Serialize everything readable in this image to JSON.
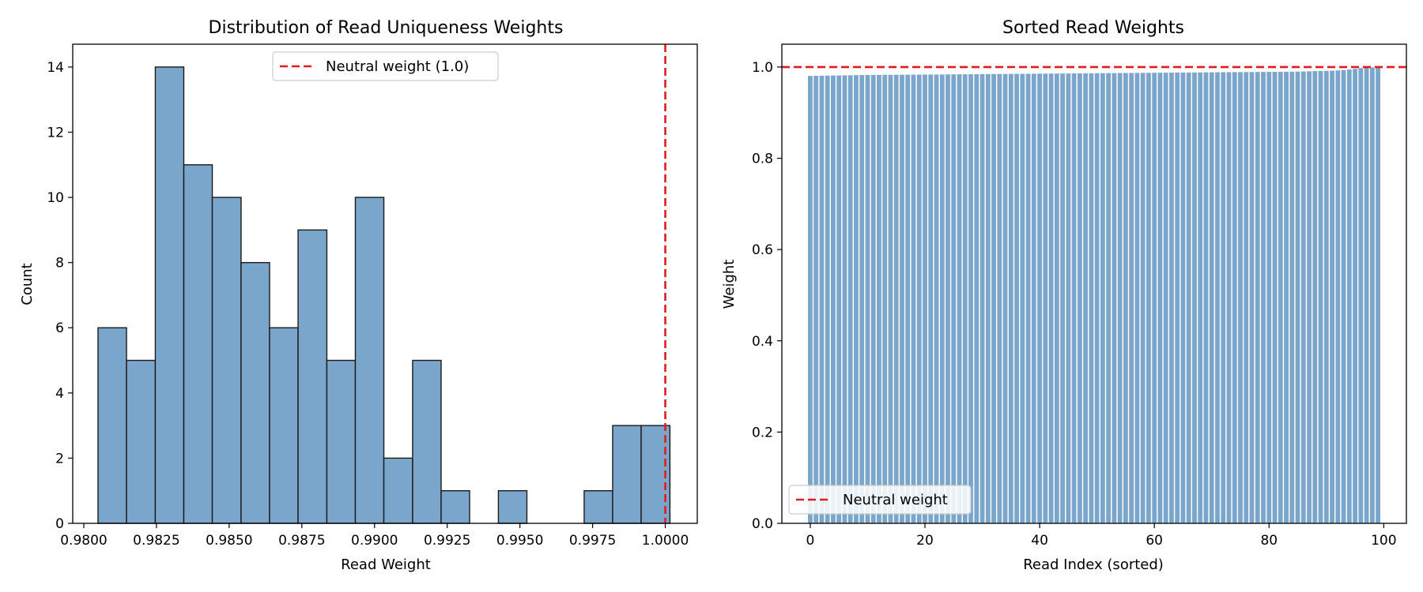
{
  "chart_data": [
    {
      "type": "bar",
      "title": "Distribution of Read Uniqueness Weights",
      "xlabel": "Read Weight",
      "ylabel": "Count",
      "xlim": [
        0.97962,
        1.0011
      ],
      "ylim": [
        0,
        14.7
      ],
      "xticks": [
        "0.9800",
        "0.9825",
        "0.9850",
        "0.9875",
        "0.9900",
        "0.9925",
        "0.9950",
        "0.9975",
        "1.0000"
      ],
      "xtick_values": [
        0.98,
        0.9825,
        0.985,
        0.9875,
        0.99,
        0.9925,
        0.995,
        0.9975,
        1.0
      ],
      "yticks": [
        "0",
        "2",
        "4",
        "6",
        "8",
        "10",
        "12",
        "14"
      ],
      "ytick_values": [
        0,
        2,
        4,
        6,
        8,
        10,
        12,
        14
      ],
      "bin_edges": [
        0.98049,
        0.98147,
        0.98246,
        0.98344,
        0.98442,
        0.98541,
        0.98639,
        0.98737,
        0.98836,
        0.98934,
        0.99032,
        0.99131,
        0.99229,
        0.99327,
        0.99426,
        0.99524,
        0.99622,
        0.99721,
        0.99819,
        0.99917,
        1.00016
      ],
      "counts": [
        6,
        5,
        14,
        11,
        10,
        8,
        6,
        9,
        5,
        10,
        2,
        5,
        1,
        0,
        1,
        0,
        0,
        1,
        3,
        3
      ],
      "reference_line": {
        "orientation": "vertical",
        "value": 1.0,
        "label": "Neutral weight (1.0)"
      },
      "legend_position": "upper center",
      "colors": {
        "bar_fill": "#7ba6cb",
        "bar_edge": "#1a1a1a",
        "reference": "#e41a1c"
      }
    },
    {
      "type": "bar",
      "title": "Sorted Read Weights",
      "xlabel": "Read Index (sorted)",
      "ylabel": "Weight",
      "xlim": [
        -4.95,
        103.95
      ],
      "ylim": [
        0,
        1.05
      ],
      "xticks": [
        "0",
        "20",
        "40",
        "60",
        "80",
        "100"
      ],
      "xtick_values": [
        0,
        20,
        40,
        60,
        80,
        100
      ],
      "yticks": [
        "0.0",
        "0.2",
        "0.4",
        "0.6",
        "0.8",
        "1.0"
      ],
      "ytick_values": [
        0,
        0.2,
        0.4,
        0.6,
        0.8,
        1.0
      ],
      "bar_count": 100,
      "bar_width": 0.8,
      "values": [
        0.9805,
        0.9808,
        0.981,
        0.9812,
        0.9814,
        0.9815,
        0.9818,
        0.982,
        0.9822,
        0.9824,
        0.9826,
        0.9826,
        0.9827,
        0.9828,
        0.9829,
        0.983,
        0.983,
        0.9831,
        0.9832,
        0.9833,
        0.9834,
        0.9835,
        0.9836,
        0.9837,
        0.9838,
        0.9839,
        0.984,
        0.9841,
        0.9842,
        0.9843,
        0.9844,
        0.9845,
        0.9846,
        0.9847,
        0.9848,
        0.9849,
        0.985,
        0.9851,
        0.9852,
        0.9853,
        0.9854,
        0.9855,
        0.9856,
        0.9857,
        0.9858,
        0.9859,
        0.986,
        0.9861,
        0.9862,
        0.9863,
        0.9864,
        0.9865,
        0.9866,
        0.9867,
        0.9868,
        0.9869,
        0.987,
        0.9871,
        0.9872,
        0.9873,
        0.9874,
        0.9875,
        0.9876,
        0.9877,
        0.9878,
        0.9879,
        0.988,
        0.9881,
        0.9882,
        0.9883,
        0.9884,
        0.9885,
        0.9886,
        0.9887,
        0.9888,
        0.9889,
        0.989,
        0.9891,
        0.9892,
        0.9893,
        0.9894,
        0.9895,
        0.9896,
        0.9897,
        0.9898,
        0.99,
        0.9903,
        0.9906,
        0.991,
        0.9913,
        0.9916,
        0.992,
        0.9925,
        0.9935,
        0.9945,
        0.996,
        0.9978,
        0.9982,
        0.999,
        0.9995
      ],
      "reference_line": {
        "orientation": "horizontal",
        "value": 1.0,
        "label": "Neutral weight"
      },
      "legend_position": "lower left",
      "colors": {
        "bar_fill": "#7ba6cb",
        "reference": "#e41a1c"
      }
    }
  ]
}
